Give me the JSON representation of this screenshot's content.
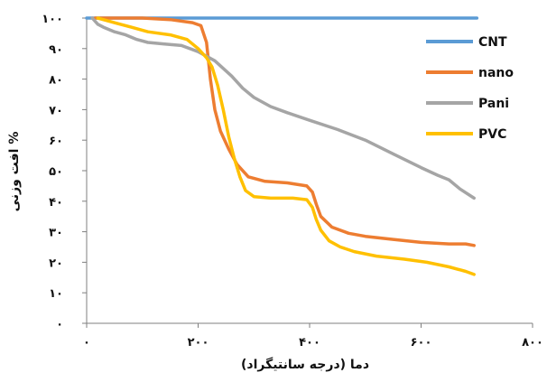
{
  "chart_data": {
    "type": "line",
    "title": "",
    "xlabel": "دما (درجه سانتیگراد)",
    "ylabel": "افت وزنی %",
    "xlim": [
      0,
      800
    ],
    "ylim": [
      0,
      100
    ],
    "x_ticks": [
      0,
      200,
      400,
      600,
      800
    ],
    "x_tick_labels": [
      "۰",
      "۲۰۰",
      "۴۰۰",
      "۶۰۰",
      "۸۰۰"
    ],
    "y_ticks": [
      0,
      10,
      20,
      30,
      40,
      50,
      60,
      70,
      80,
      90,
      100
    ],
    "y_tick_labels": [
      "۰",
      "۱۰",
      "۲۰",
      "۳۰",
      "۴۰",
      "۵۰",
      "۶۰",
      "۷۰",
      "۸۰",
      "۹۰",
      "۱۰۰"
    ],
    "grid": false,
    "legend_position": "right",
    "series": [
      {
        "name": "CNT",
        "color": "#5B9BD5",
        "x": [
          0,
          100,
          200,
          300,
          400,
          500,
          600,
          700
        ],
        "y": [
          100,
          100,
          100,
          100,
          100,
          100,
          100,
          100
        ]
      },
      {
        "name": "nano",
        "color": "#ED7D31",
        "x": [
          15,
          100,
          150,
          190,
          205,
          215,
          222,
          230,
          240,
          255,
          270,
          290,
          320,
          360,
          395,
          405,
          412,
          420,
          440,
          470,
          500,
          550,
          600,
          650,
          680,
          695
        ],
        "y": [
          100,
          100,
          99.5,
          98.5,
          97.5,
          92,
          80,
          70,
          63,
          57,
          52,
          48,
          46.5,
          46,
          45,
          43,
          39,
          35,
          31.5,
          29.5,
          28.5,
          27.5,
          26.5,
          26,
          26,
          25.5
        ]
      },
      {
        "name": "Pani",
        "color": "#A5A5A5",
        "x": [
          10,
          20,
          30,
          50,
          70,
          90,
          110,
          140,
          170,
          200,
          230,
          260,
          280,
          300,
          330,
          360,
          400,
          450,
          500,
          550,
          600,
          630,
          650,
          670,
          695
        ],
        "y": [
          100,
          98,
          97,
          95.5,
          94.5,
          93,
          92,
          91.5,
          91,
          89,
          86,
          81,
          77,
          74,
          71,
          69,
          66.5,
          63.5,
          60,
          55.5,
          51,
          48.5,
          47,
          44,
          41
        ]
      },
      {
        "name": "PVC",
        "color": "#FFC000",
        "x": [
          20,
          40,
          60,
          80,
          110,
          150,
          180,
          200,
          215,
          225,
          235,
          245,
          255,
          265,
          275,
          285,
          300,
          330,
          370,
          395,
          405,
          412,
          420,
          435,
          455,
          480,
          520,
          570,
          610,
          650,
          680,
          695
        ],
        "y": [
          100,
          99,
          98,
          97,
          95.5,
          94.5,
          93,
          90,
          87,
          84,
          78,
          70,
          61,
          54,
          48,
          43.5,
          41.5,
          41,
          41,
          40.5,
          38,
          34,
          30.5,
          27,
          25,
          23.5,
          22,
          21,
          20,
          18.5,
          17,
          16
        ]
      }
    ]
  }
}
